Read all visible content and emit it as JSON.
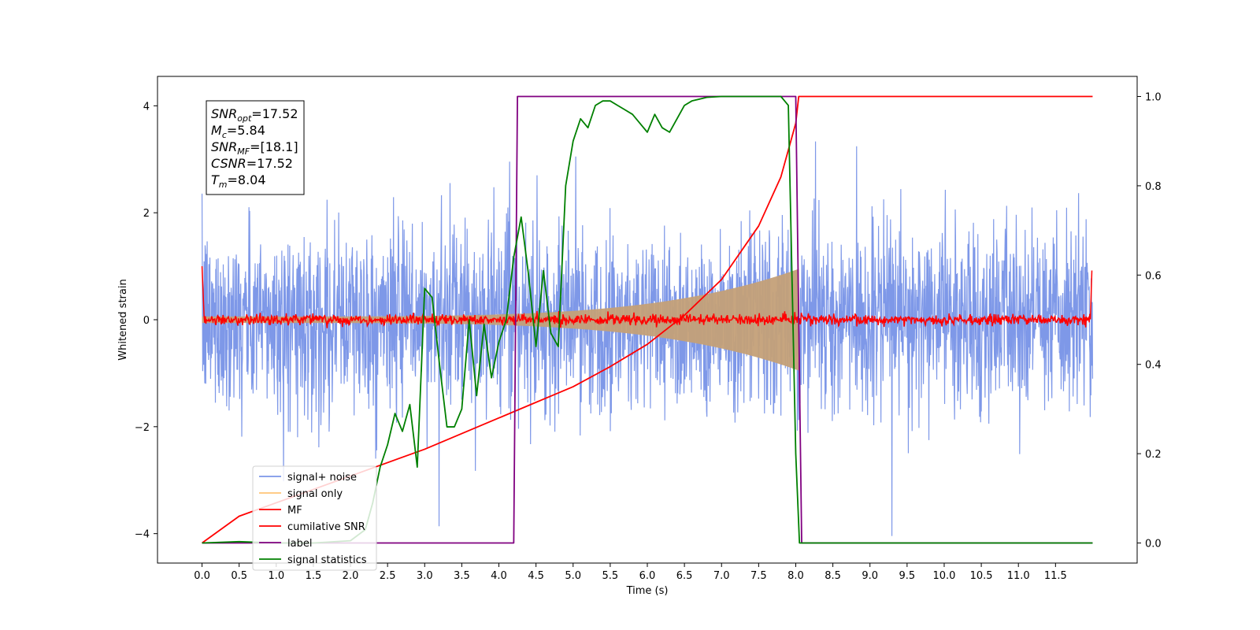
{
  "chart_data": {
    "type": "line",
    "xlabel": "Time (s)",
    "ylabel": "Whitened strain",
    "xlim": [
      -0.6,
      12.6
    ],
    "ylim": [
      -4.55,
      4.55
    ],
    "y2lim": [
      -0.045,
      1.045
    ],
    "xticks": [
      "0.0",
      "0.5",
      "1.0",
      "1.5",
      "2.0",
      "2.5",
      "3.0",
      "3.5",
      "4.0",
      "4.5",
      "5.0",
      "5.5",
      "6.0",
      "6.5",
      "7.0",
      "7.5",
      "8.0",
      "8.5",
      "9.0",
      "9.5",
      "10.0",
      "10.5",
      "11.0",
      "11.5"
    ],
    "yticks": [
      "4",
      "2",
      "0",
      "−2",
      "−4"
    ],
    "y2ticks": [
      "1.0",
      "0.8",
      "0.6",
      "0.4",
      "0.2",
      "0.0"
    ],
    "grid": false,
    "legend_position": "lower-left",
    "colors": {
      "noise": "#7b96e8",
      "signal": "#c4a078",
      "signal_legend": "#ffc477",
      "mf": "#ff0000",
      "csnr": "#ff0000",
      "label": "#800080",
      "stats": "#008000"
    },
    "annotation": [
      {
        "base": "SNR",
        "sub": "opt",
        "value": "=17.52"
      },
      {
        "base": "M",
        "sub": "c",
        "value": "=5.84"
      },
      {
        "base": "SNR",
        "sub": "MF",
        "value": "=[18.1]"
      },
      {
        "base": "CSNR",
        "sub": "",
        "value": "=17.52"
      },
      {
        "base": "T",
        "sub": "m",
        "value": "=8.04"
      }
    ],
    "series": [
      {
        "name": "signal+ noise",
        "axis": "left",
        "kind": "noise",
        "x_range": [
          0.0,
          12.0
        ],
        "sigma": 0.85
      },
      {
        "name": "signal only",
        "axis": "left",
        "kind": "chirp",
        "t_merge": 8.04,
        "amp_start": 0.06,
        "amp_end": 0.95
      },
      {
        "name": "MF",
        "axis": "left",
        "kind": "mf",
        "level": 0.0,
        "jitter": 0.05,
        "edge_value": 1.0
      },
      {
        "name": "cumilative SNR",
        "axis": "right",
        "x": [
          0.0,
          0.5,
          1.0,
          1.5,
          2.0,
          2.5,
          3.0,
          3.5,
          4.0,
          4.5,
          5.0,
          5.5,
          6.0,
          6.5,
          7.0,
          7.5,
          7.8,
          8.0,
          8.04,
          12.0
        ],
        "y": [
          0.0,
          0.06,
          0.09,
          0.12,
          0.15,
          0.18,
          0.21,
          0.245,
          0.28,
          0.315,
          0.35,
          0.395,
          0.445,
          0.51,
          0.59,
          0.71,
          0.82,
          0.94,
          1.0,
          1.0
        ]
      },
      {
        "name": "label",
        "axis": "right",
        "x": [
          0.0,
          4.2,
          4.25,
          8.0,
          8.08,
          12.0
        ],
        "y": [
          0.0,
          0.0,
          1.0,
          1.0,
          0.0,
          0.0
        ]
      },
      {
        "name": "signal statistics",
        "axis": "right",
        "x": [
          0.0,
          0.5,
          1.0,
          1.5,
          2.0,
          2.2,
          2.3,
          2.4,
          2.5,
          2.6,
          2.7,
          2.8,
          2.9,
          3.0,
          3.1,
          3.2,
          3.3,
          3.4,
          3.5,
          3.6,
          3.7,
          3.8,
          3.9,
          4.0,
          4.1,
          4.2,
          4.3,
          4.4,
          4.5,
          4.6,
          4.7,
          4.8,
          4.9,
          5.0,
          5.1,
          5.2,
          5.3,
          5.4,
          5.5,
          5.6,
          5.7,
          5.8,
          5.9,
          6.0,
          6.1,
          6.2,
          6.3,
          6.4,
          6.5,
          6.6,
          6.8,
          7.0,
          7.2,
          7.5,
          7.7,
          7.8,
          7.9,
          8.0,
          8.05,
          12.0
        ],
        "y": [
          0.0,
          0.003,
          0.0,
          0.0,
          0.005,
          0.03,
          0.09,
          0.17,
          0.22,
          0.29,
          0.25,
          0.31,
          0.17,
          0.57,
          0.55,
          0.4,
          0.26,
          0.26,
          0.3,
          0.5,
          0.33,
          0.49,
          0.37,
          0.45,
          0.5,
          0.64,
          0.73,
          0.6,
          0.44,
          0.61,
          0.47,
          0.44,
          0.8,
          0.9,
          0.95,
          0.93,
          0.98,
          0.99,
          0.99,
          0.98,
          0.97,
          0.96,
          0.94,
          0.92,
          0.96,
          0.93,
          0.92,
          0.95,
          0.98,
          0.99,
          0.998,
          1.0,
          1.0,
          1.0,
          1.0,
          1.0,
          0.98,
          0.2,
          0.0,
          0.0
        ]
      }
    ]
  }
}
